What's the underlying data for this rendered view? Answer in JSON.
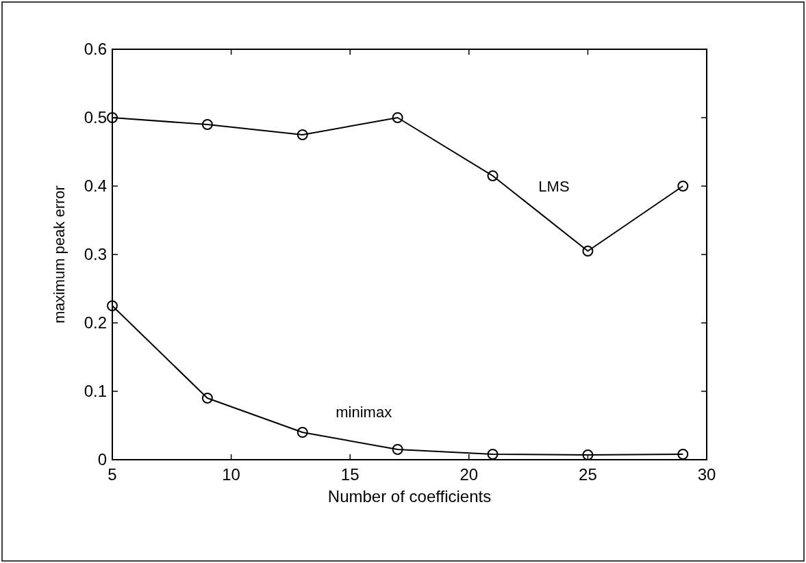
{
  "chart_data": {
    "type": "line",
    "xlabel": "Number of coefficients",
    "ylabel": "maximum peak error",
    "x": [
      5,
      9,
      13,
      17,
      21,
      25,
      29
    ],
    "series": [
      {
        "name": "LMS",
        "color": "#000000",
        "values": [
          0.5,
          0.49,
          0.475,
          0.5,
          0.415,
          0.305,
          0.4
        ]
      },
      {
        "name": "minimax",
        "color": "#000000",
        "values": [
          0.225,
          0.09,
          0.04,
          0.015,
          0.008,
          0.007,
          0.008
        ]
      }
    ],
    "xlim": [
      5,
      30
    ],
    "xticks": [
      5,
      10,
      15,
      20,
      25,
      30
    ],
    "ylim": [
      0,
      0.6
    ],
    "yticks": [
      0,
      0.1,
      0.2,
      0.3,
      0.4,
      0.5,
      0.6
    ],
    "marker": "circle",
    "line_style": "solid",
    "grid": false
  }
}
